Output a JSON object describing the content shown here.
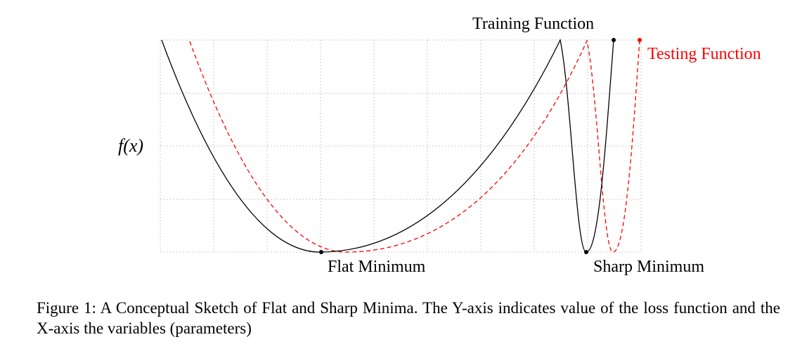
{
  "figure": {
    "labels": {
      "y_axis": "f(x)",
      "training_function": "Training Function",
      "testing_function": "Testing Function",
      "flat_minimum": "Flat Minimum",
      "sharp_minimum": "Sharp Minimum"
    },
    "colors": {
      "training": "#000000",
      "testing": "#ff0000",
      "grid": "#bbbbbb"
    },
    "line_styles": {
      "training": "solid",
      "testing": "dashed"
    }
  },
  "caption": {
    "text": "Figure 1: A Conceptual Sketch of Flat and Sharp Minima. The Y-axis indicates value of the loss function and the X-axis the variables (parameters)"
  }
}
